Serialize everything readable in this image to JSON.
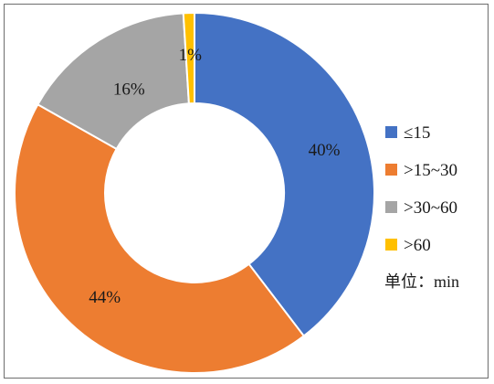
{
  "chart_data": {
    "type": "pie",
    "variant": "donut",
    "title": "",
    "categories": [
      "≤15",
      ">15~30",
      ">30~60",
      ">60"
    ],
    "values": [
      40,
      44,
      16,
      1
    ],
    "labels": [
      "40%",
      "44%",
      "16%",
      "1%"
    ],
    "colors": [
      "#4472c4",
      "#ed7d31",
      "#a5a5a5",
      "#ffc000"
    ],
    "legend_position": "right",
    "unit_note": "单位：min"
  }
}
